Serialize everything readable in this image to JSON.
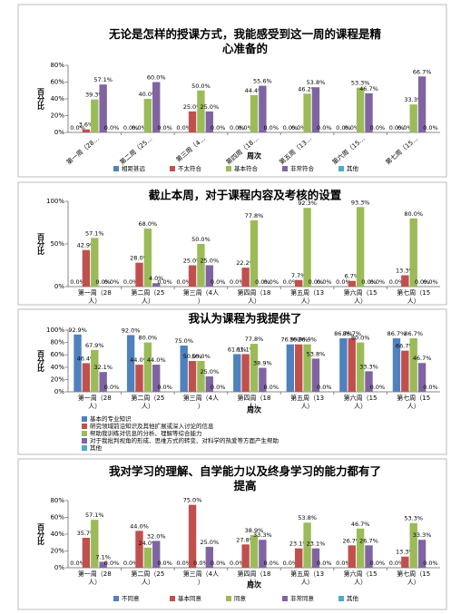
{
  "chart_data": [
    {
      "type": "bar",
      "title": "无论是怎样的授课方式，我能感受到这一周的课程是精心准备的",
      "x_label": "周次",
      "y_label": "百分比",
      "categories": [
        "第一周（28…",
        "第二周（25…",
        "第三周（4…",
        "第四周（18…",
        "第五周（13…",
        "第六周（15…",
        "第七周（15…"
      ],
      "ylim": [
        0,
        80
      ],
      "yticks": [
        {
          "value": 0,
          "label": "0%"
        },
        {
          "value": 20,
          "label": "20%"
        },
        {
          "value": 40,
          "label": "40%"
        },
        {
          "value": 60,
          "label": "60%"
        },
        {
          "value": 80,
          "label": "80%"
        }
      ],
      "legend": "bottom",
      "series": [
        {
          "name": "相距甚远",
          "color": "#4f81bd",
          "values": [
            0,
            0,
            0,
            0,
            0,
            0,
            0
          ],
          "value_labels": [
            "0.0%",
            "0.0%",
            "0.0%",
            "0.0%",
            "0.0%",
            "0.0%",
            "0.0%"
          ]
        },
        {
          "name": "不太符合",
          "color": "#c0504d",
          "values": [
            3.6,
            0,
            25,
            0,
            0,
            0,
            0
          ],
          "value_labels": [
            "3.6%",
            "0.0%",
            "25.0%",
            "0.0%",
            "0.0%",
            "0.0%",
            "0.0%"
          ]
        },
        {
          "name": "基本符合",
          "color": "#9bbb59",
          "values": [
            39.3,
            40,
            50,
            44.4,
            46.2,
            53.3,
            33.3
          ],
          "value_labels": [
            "39.3%",
            "40.0%",
            "50.0%",
            "44.4%",
            "46.2%",
            "53.3%",
            "33.3%"
          ]
        },
        {
          "name": "非常符合",
          "color": "#8064a2",
          "values": [
            57.1,
            60,
            25,
            55.6,
            53.8,
            46.7,
            66.7
          ],
          "value_labels": [
            "57.1%",
            "60.0%",
            "25.0%",
            "55.6%",
            "53.8%",
            "46.7%",
            "66.7%"
          ]
        },
        {
          "name": "其他",
          "color": "#4bacc6",
          "values": [
            0,
            0,
            0,
            0,
            0,
            0,
            0
          ],
          "value_labels": [
            "0.0%",
            "0.0%",
            "0.0%",
            "0.0%",
            "0.0%",
            "0.0%",
            "0.0%"
          ]
        }
      ]
    },
    {
      "type": "bar",
      "title": "截止本周，对于课程内容及考核的设置",
      "y_label": "百分比",
      "categories": [
        "第一周（28人）",
        "第二周（25人）",
        "第三周（4人）",
        "第四周（18人）",
        "第五周（13人）",
        "第六周（15人）",
        "第七周（15人）"
      ],
      "ylim": [
        0,
        100
      ],
      "yticks": [
        {
          "value": 0,
          "label": "0%"
        },
        {
          "value": 50,
          "label": "50%"
        },
        {
          "value": 100,
          "label": "100%"
        }
      ],
      "series": [
        {
          "color": "#4f81bd",
          "values": [
            0,
            0,
            0,
            0,
            0,
            0,
            0
          ],
          "value_labels": [
            "0.0%",
            "0.0%",
            "0.0%",
            "0.0%",
            "0.0%",
            "0.0%",
            "0.0%"
          ]
        },
        {
          "color": "#c0504d",
          "values": [
            42.9,
            28,
            25,
            22.2,
            7.7,
            6.7,
            13.3
          ],
          "value_labels": [
            "42.9%",
            "28.0%",
            "25.0%",
            "22.2%",
            "7.7%",
            "6.7%",
            "13.3%"
          ]
        },
        {
          "color": "#9bbb59",
          "values": [
            57.1,
            68,
            50,
            77.8,
            92.3,
            93.3,
            80
          ],
          "value_labels": [
            "57.1%",
            "68.0%",
            "50.0%",
            "77.8%",
            "92.3%",
            "93.3%",
            "80.0%"
          ]
        },
        {
          "color": "#8064a2",
          "values": [
            0,
            4,
            25,
            0,
            0,
            0,
            0
          ],
          "value_labels": [
            "0.0%",
            "4.0%",
            "25.0%",
            "0.0%",
            "0.0%",
            "0.0%",
            "0.0%"
          ]
        },
        {
          "color": "#4bacc6",
          "values": [
            0,
            0,
            0,
            0,
            0,
            0,
            0
          ],
          "value_labels": [
            "0.0%",
            "0.0%",
            "0.0%",
            "0.0%",
            "0.0%",
            "0.0%",
            "0.0%"
          ]
        }
      ]
    },
    {
      "type": "bar",
      "title": "我认为课程为我提供了",
      "x_label": "周次",
      "y_label": "百分比",
      "categories": [
        "第一周（28人）",
        "第二周（25人）",
        "第三周（4人）",
        "第四周（18人）",
        "第五周（13人）",
        "第六周（15人）",
        "第七周（15人）"
      ],
      "ylim": [
        0,
        100
      ],
      "yticks": [
        {
          "value": 0,
          "label": "0%"
        },
        {
          "value": 20,
          "label": "20%"
        },
        {
          "value": 40,
          "label": "40%"
        },
        {
          "value": 60,
          "label": "60%"
        },
        {
          "value": 80,
          "label": "80%"
        },
        {
          "value": 100,
          "label": "100%"
        }
      ],
      "legend": "bottom-list",
      "series": [
        {
          "name": "基本的专业知识",
          "color": "#4f81bd",
          "values": [
            92.9,
            92,
            75,
            61.1,
            76.9,
            86.7,
            86.7
          ],
          "value_labels": [
            "92.9%",
            "92.0%",
            "75.0%",
            "61.1%",
            "76.9%",
            "86.7%",
            "86.7%"
          ]
        },
        {
          "name": "研究领域前沿知识及其他扩展或深入讨论的信息",
          "color": "#c0504d",
          "values": [
            46.4,
            44,
            50,
            61.1,
            76.9,
            86.7,
            66.7
          ],
          "value_labels": [
            "46.4%",
            "44.0%",
            "50.0%",
            "61.1%",
            "76.9%",
            "86.7%",
            "66.7%"
          ]
        },
        {
          "name": "帮助我训练对信息的分析、理解等综合能力",
          "color": "#9bbb59",
          "values": [
            67.9,
            80,
            50,
            77.8,
            76.9,
            80,
            86.7
          ],
          "value_labels": [
            "67.9%",
            "80.0%",
            "50.0%",
            "77.8%",
            "76.9%",
            "80.0%",
            "86.7%"
          ]
        },
        {
          "name": "对于我批判视角的形成、思维方式的转变、对科学的热爱等方面产生帮助",
          "color": "#8064a2",
          "values": [
            32.1,
            44,
            25,
            38.9,
            53.8,
            33.3,
            46.7
          ],
          "value_labels": [
            "32.1%",
            "44.0%",
            "25.0%",
            "38.9%",
            "53.8%",
            "33.3%",
            "46.7%"
          ]
        },
        {
          "name": "其他",
          "color": "#4bacc6",
          "values": [
            0,
            0,
            0,
            0,
            0,
            0,
            0
          ],
          "value_labels": [
            "0.0%",
            "0.0%",
            "0.0%",
            "0.0%",
            "0.0%",
            "0.0%",
            "0.0%"
          ]
        }
      ]
    },
    {
      "type": "bar",
      "title": "我对学习的理解、自学能力以及终身学习的能力都有了提高",
      "x_label": "周次",
      "y_label": "百分比",
      "categories": [
        "第一周（28人）",
        "第二周（25人）",
        "第三周（4人）",
        "第四周（18人）",
        "第五周（13人）",
        "第六周（15人）",
        "第七周（15人）"
      ],
      "ylim": [
        0,
        80
      ],
      "yticks": [
        {
          "value": 0,
          "label": "0%"
        },
        {
          "value": 20,
          "label": "20%"
        },
        {
          "value": 40,
          "label": "40%"
        },
        {
          "value": 60,
          "label": "60%"
        },
        {
          "value": 80,
          "label": "80%"
        }
      ],
      "legend": "bottom",
      "series": [
        {
          "name": "不同意",
          "color": "#4f81bd",
          "values": [
            0,
            0,
            0,
            0,
            0,
            0,
            0
          ],
          "value_labels": [
            "0.0%",
            "0.0%",
            "0.0%",
            "0.0%",
            "0.0%",
            "0.0%",
            "0.0%"
          ]
        },
        {
          "name": "基本同意",
          "color": "#c0504d",
          "values": [
            35.7,
            44,
            75,
            27.8,
            23.1,
            26.7,
            13.3
          ],
          "value_labels": [
            "35.7%",
            "44.0%",
            "75.0%",
            "27.8%",
            "23.1%",
            "26.7%",
            "13.3%"
          ]
        },
        {
          "name": "同意",
          "color": "#9bbb59",
          "values": [
            57.1,
            24,
            0,
            38.9,
            53.8,
            46.7,
            53.3
          ],
          "value_labels": [
            "57.1%",
            "24.0%",
            "0.0%",
            "38.9%",
            "53.8%",
            "46.7%",
            "53.3%"
          ]
        },
        {
          "name": "非常同意",
          "color": "#8064a2",
          "values": [
            7.1,
            32,
            25,
            33.3,
            23.1,
            26.7,
            33.3
          ],
          "value_labels": [
            "7.1%",
            "32.0%",
            "25.0%",
            "33.3%",
            "23.1%",
            "26.7%",
            "33.3%"
          ]
        },
        {
          "name": "其他",
          "color": "#4bacc6",
          "values": [
            0,
            0,
            0,
            0,
            0,
            0,
            0
          ],
          "value_labels": [
            "0.0%",
            "0.0%",
            "0.0%",
            "0.0%",
            "0.0%",
            "0.0%",
            "0.0%"
          ]
        }
      ]
    }
  ]
}
